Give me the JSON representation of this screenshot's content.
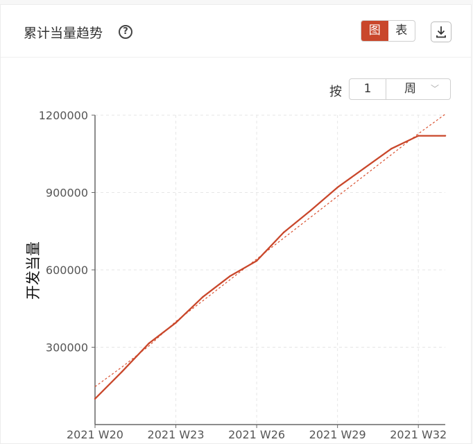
{
  "header": {
    "title": "累计当量趋势",
    "help_icon": "help-circle-icon",
    "view_toggle": [
      "图",
      "表"
    ],
    "active_view": "图",
    "download_icon": "download-icon"
  },
  "period": {
    "label": "按",
    "value": "1",
    "unit": "周"
  },
  "colors": {
    "accent": "#c9472b",
    "line": "#c9472b",
    "trend": "#d9502f",
    "grid": "#e6e6e6"
  },
  "chart_data": {
    "type": "line",
    "ylabel": "开发当量",
    "xlabel": "",
    "ylim": [
      0,
      1200000
    ],
    "yticks": [
      300000,
      600000,
      900000,
      1200000
    ],
    "x_tick_labels": [
      "2021 W20",
      "2021 W23",
      "2021 W26",
      "2021 W29",
      "2021 W32"
    ],
    "x": [
      "2021 W20",
      "2021 W21",
      "2021 W22",
      "2021 W23",
      "2021 W24",
      "2021 W25",
      "2021 W26",
      "2021 W27",
      "2021 W28",
      "2021 W29",
      "2021 W30",
      "2021 W31",
      "2021 W32",
      "2021 W33"
    ],
    "series": [
      {
        "values": [
          100000,
          205000,
          315000,
          395000,
          495000,
          575000,
          635000,
          745000,
          830000,
          920000,
          995000,
          1070000,
          1120000,
          1120000
        ]
      },
      {
        "style": "dashed-trend",
        "values": [
          147000,
          223000,
          305000,
          400000,
          480000,
          561000,
          642000,
          723000,
          804000,
          885000,
          966000,
          1047000,
          1128000,
          1204000
        ]
      }
    ],
    "grid": true
  }
}
